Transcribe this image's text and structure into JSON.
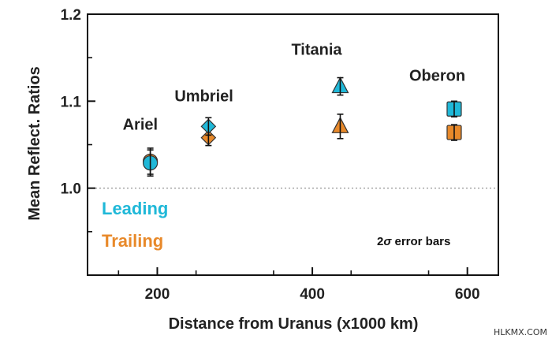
{
  "chart_data": {
    "type": "scatter",
    "xlabel": "Distance from Uranus (x1000 km)",
    "ylabel": "Mean Reflect. Ratios",
    "xlim": [
      110,
      640
    ],
    "ylim": [
      0.9,
      1.2
    ],
    "xticks": [
      200,
      400,
      600
    ],
    "xtick_labels": [
      "200",
      "400",
      "600"
    ],
    "yticks": [
      1.0,
      1.1,
      1.2
    ],
    "ytick_labels": [
      "1.0",
      "1.1",
      "1.2"
    ],
    "reference_line": 1.0,
    "moons": [
      {
        "name": "Ariel",
        "x": 191,
        "marker": "circle",
        "leading": 1.029,
        "leading_err": 0.015,
        "trailing": 1.031,
        "trailing_err": 0.015
      },
      {
        "name": "Umbriel",
        "x": 266,
        "marker": "diamond",
        "leading": 1.071,
        "leading_err": 0.01,
        "trailing": 1.058,
        "trailing_err": 0.009
      },
      {
        "name": "Titania",
        "x": 436,
        "marker": "triangle",
        "leading": 1.117,
        "leading_err": 0.01,
        "trailing": 1.071,
        "trailing_err": 0.014
      },
      {
        "name": "Oberon",
        "x": 583,
        "marker": "square",
        "leading": 1.091,
        "leading_err": 0.009,
        "trailing": 1.064,
        "trailing_err": 0.009
      }
    ],
    "series": [
      {
        "name": "Leading",
        "color": "#1fb8d8"
      },
      {
        "name": "Trailing",
        "color": "#e8892a"
      }
    ],
    "annotation_prefix": "2",
    "annotation_symbol": "σ",
    "annotation_suffix": " error bars"
  },
  "watermark": "HLKMX.COM"
}
